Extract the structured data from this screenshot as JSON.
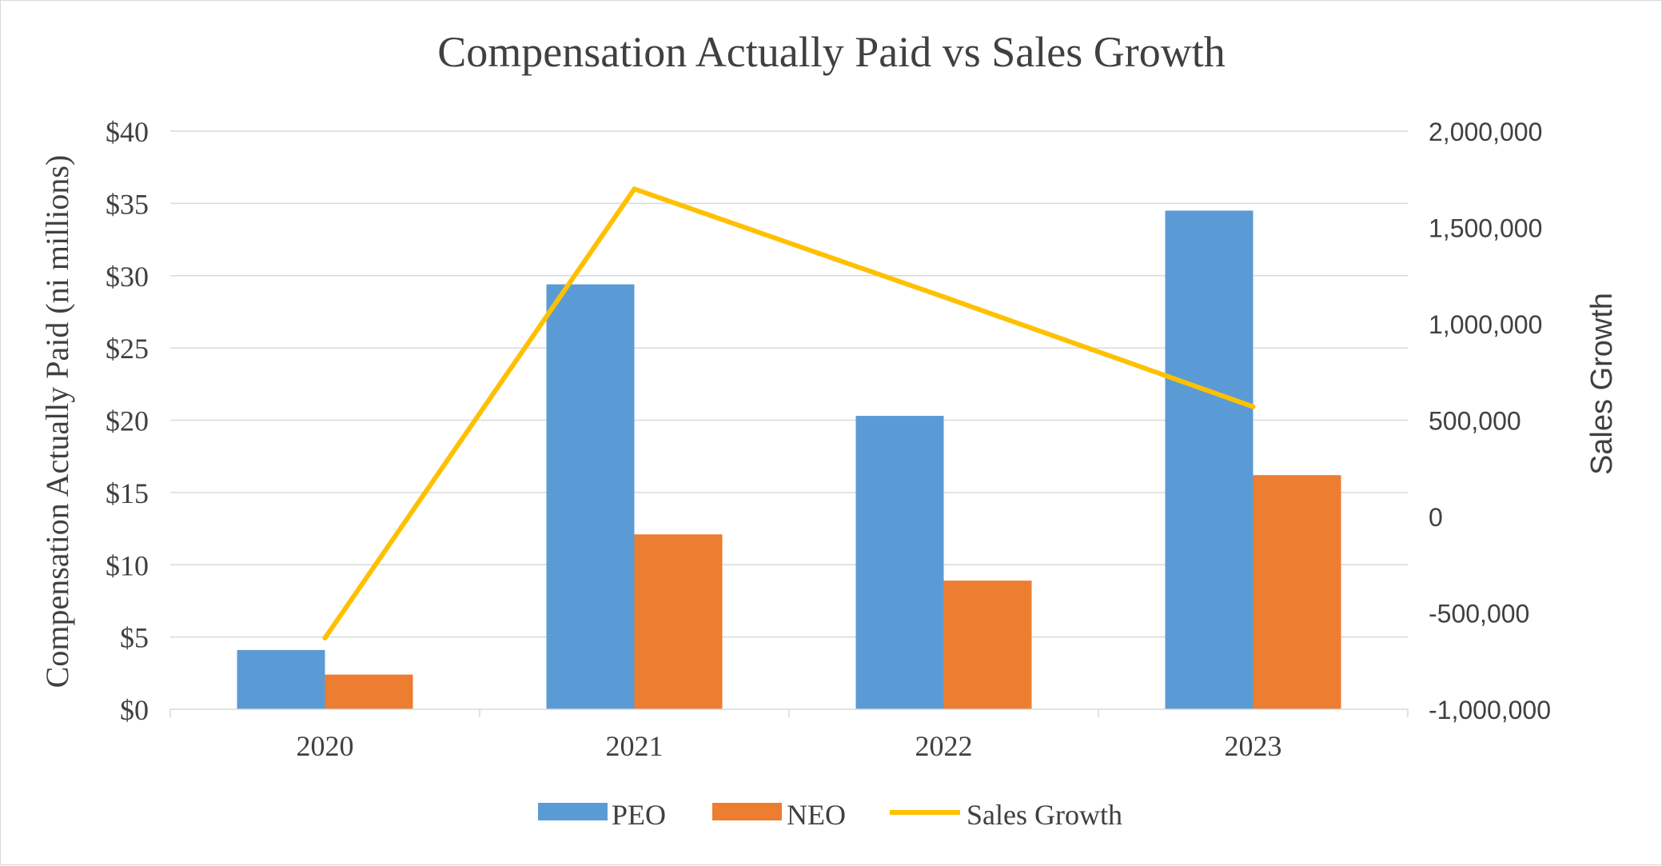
{
  "chart_data": {
    "type": "bar",
    "title": "Compensation Actually Paid vs Sales Growth",
    "ylabel": "Compensation Actually Paid (ni millions)",
    "y2label": "Sales Growth",
    "xlabel": "",
    "categories": [
      "2020",
      "2021",
      "2022",
      "2023"
    ],
    "ylim": [
      0,
      40
    ],
    "yticks": [
      "$0",
      "$5",
      "$10",
      "$15",
      "$20",
      "$25",
      "$30",
      "$35",
      "$40"
    ],
    "y2lim": [
      -1000000,
      2000000
    ],
    "y2ticks": [
      "-1,000,000",
      "-500,000",
      "0",
      "500,000",
      "1,000,000",
      "1,500,000",
      "2,000,000"
    ],
    "grid": true,
    "legend_position": "bottom",
    "series": [
      {
        "name": "PEO",
        "type": "bar",
        "axis": "left",
        "color": "#5b9bd5",
        "values": [
          4.1,
          29.4,
          20.3,
          34.5
        ]
      },
      {
        "name": "NEO",
        "type": "bar",
        "axis": "left",
        "color": "#ed7d31",
        "values": [
          2.4,
          12.1,
          8.9,
          16.2
        ]
      },
      {
        "name": "Sales Growth",
        "type": "line",
        "axis": "right",
        "color": "#ffc000",
        "values": [
          -630000,
          1700000,
          1140000,
          570000
        ]
      }
    ]
  }
}
